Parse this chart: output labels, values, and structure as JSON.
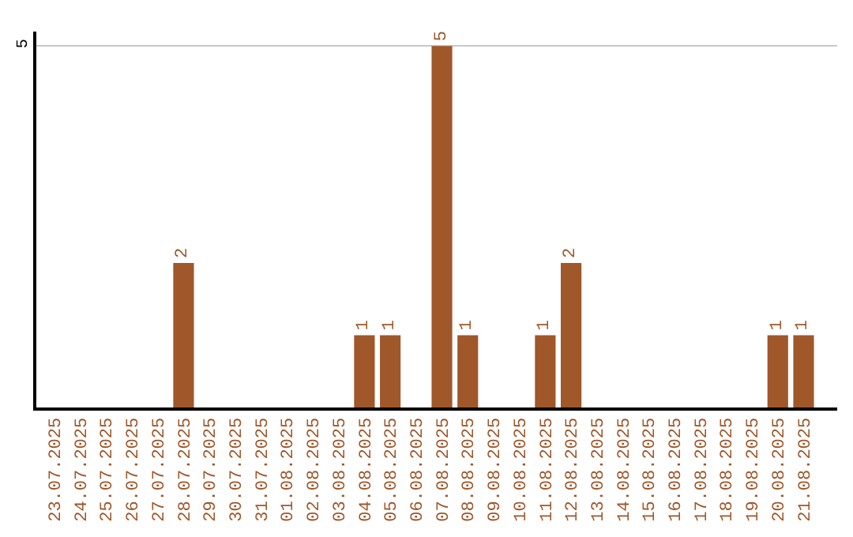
{
  "chart_data": {
    "type": "bar",
    "categories": [
      "23.07.2025",
      "24.07.2025",
      "25.07.2025",
      "26.07.2025",
      "27.07.2025",
      "28.07.2025",
      "29.07.2025",
      "30.07.2025",
      "31.07.2025",
      "01.08.2025",
      "02.08.2025",
      "03.08.2025",
      "04.08.2025",
      "05.08.2025",
      "06.08.2025",
      "07.08.2025",
      "08.08.2025",
      "09.08.2025",
      "10.08.2025",
      "11.08.2025",
      "12.08.2025",
      "13.08.2025",
      "14.08.2025",
      "15.08.2025",
      "16.08.2025",
      "17.08.2025",
      "18.08.2025",
      "19.08.2025",
      "20.08.2025",
      "21.08.2025"
    ],
    "values": [
      0,
      0,
      0,
      0,
      0,
      2,
      0,
      0,
      0,
      0,
      0,
      0,
      1,
      1,
      0,
      5,
      1,
      0,
      0,
      1,
      2,
      0,
      0,
      0,
      0,
      0,
      0,
      0,
      1,
      1
    ],
    "value_labels": [
      null,
      null,
      null,
      null,
      null,
      "2",
      null,
      null,
      null,
      null,
      null,
      null,
      "1",
      "1",
      null,
      "5",
      "1",
      null,
      null,
      "1",
      "2",
      null,
      null,
      null,
      null,
      null,
      null,
      null,
      "1",
      "1"
    ],
    "color": "#a0572a",
    "ylim": [
      0,
      5.2
    ],
    "yticks": [
      5
    ],
    "grid": "y",
    "legend": false
  }
}
